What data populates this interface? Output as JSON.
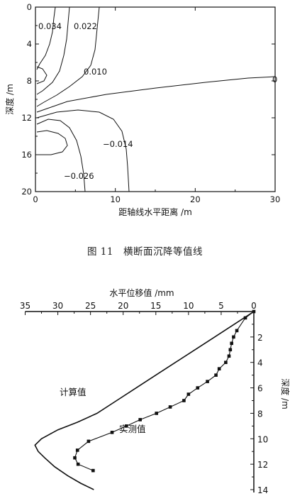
{
  "figure11": {
    "caption": "图 11　横断面沉降等值线",
    "chart_data": {
      "type": "contour",
      "xlabel": "距轴线水平距离 /m",
      "ylabel": "深度 /m",
      "xlim": [
        0,
        30
      ],
      "ylim": [
        20,
        0
      ],
      "xticks": [
        "0",
        "10",
        "20",
        "30"
      ],
      "yticks": [
        "0",
        "4",
        "8",
        "12",
        "16",
        "20"
      ],
      "contour_labels": [
        "0.034",
        "0.022",
        "0.010",
        "0",
        "−0.014",
        "−0.026"
      ]
    }
  },
  "figure12": {
    "chart_data": {
      "type": "line",
      "xlabel": "水平位移值 /mm",
      "ylabel": "深度 /m",
      "xlim": [
        35,
        0
      ],
      "ylim": [
        14,
        0
      ],
      "xticks": [
        "35",
        "30",
        "25",
        "20",
        "15",
        "10",
        "5",
        "0"
      ],
      "yticks": [
        "2",
        "4",
        "6",
        "8",
        "10",
        "12",
        "14"
      ],
      "series": [
        {
          "name": "计算值",
          "x": [
            0,
            3,
            6,
            9,
            12,
            15,
            18,
            21,
            24,
            27,
            30,
            32.5,
            33.5,
            33,
            32,
            30.5,
            28.5,
            26.5,
            24.5
          ],
          "y": [
            0,
            1.0,
            2.0,
            3.0,
            4.0,
            5.0,
            6.0,
            7.0,
            8.0,
            8.7,
            9.3,
            10.0,
            10.5,
            11.0,
            11.5,
            12.2,
            12.9,
            13.5,
            14.0
          ]
        },
        {
          "name": "实测值",
          "x": [
            0,
            1.3,
            2.6,
            3.1,
            3.4,
            3.6,
            3.8,
            4.3,
            5.3,
            5.8,
            7.1,
            8.6,
            10.0,
            10.7,
            12.8,
            14.9,
            17.4,
            19.5,
            21.7,
            25.3,
            27.0,
            27.4,
            26.9,
            24.6
          ],
          "y": [
            0,
            0.5,
            1.5,
            2.0,
            2.5,
            3.0,
            3.5,
            4.0,
            4.5,
            5.0,
            5.5,
            6.0,
            6.5,
            7.0,
            7.5,
            8.0,
            8.5,
            9.0,
            9.5,
            10.2,
            10.9,
            11.5,
            12.0,
            12.5
          ]
        }
      ]
    }
  }
}
